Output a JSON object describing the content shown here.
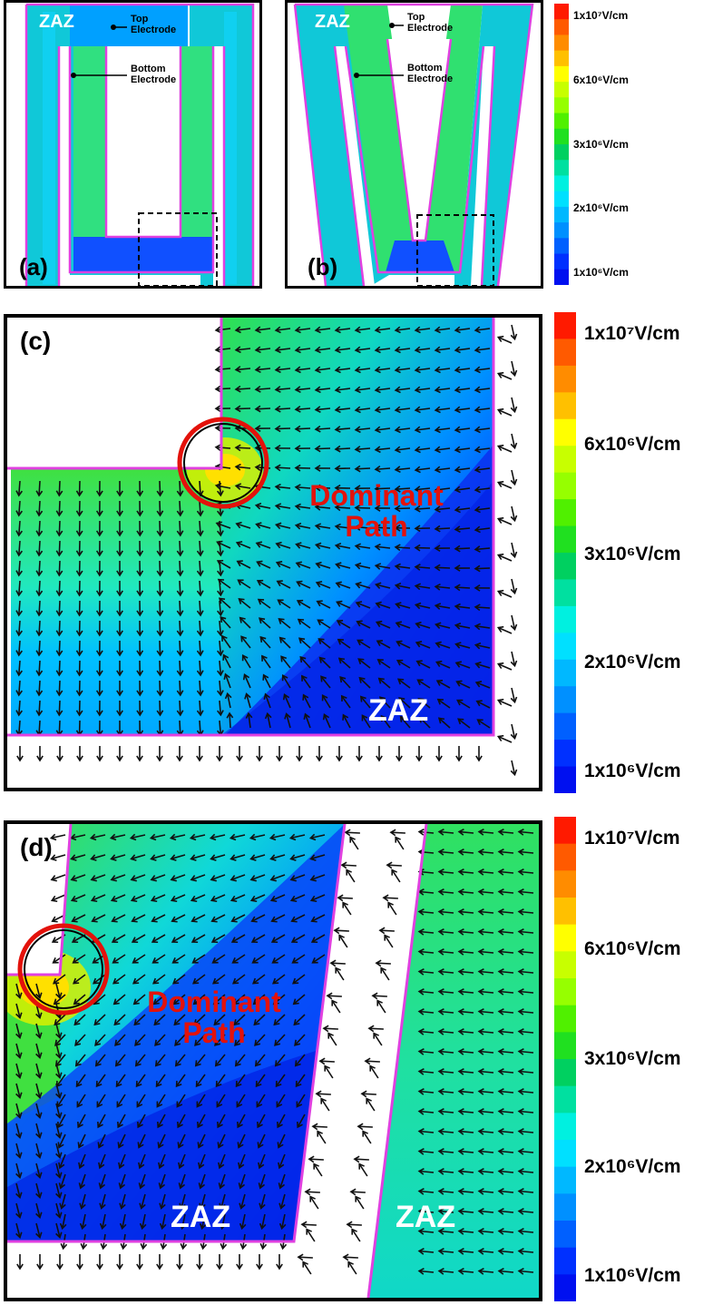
{
  "colorbar": {
    "colors": [
      "#ff1a00",
      "#ff5a00",
      "#ff8c00",
      "#ffc000",
      "#ffff00",
      "#c8ff00",
      "#96ff00",
      "#50f000",
      "#20e020",
      "#00d060",
      "#00e0a0",
      "#00f0e0",
      "#00e0ff",
      "#00b8ff",
      "#0090ff",
      "#0060ff",
      "#0030ff",
      "#0010f0"
    ],
    "small_labels": [
      "1x10⁷V/cm",
      "6x10⁶V/cm",
      "3x10⁶V/cm",
      "2x10⁶V/cm",
      "1x10⁶V/cm"
    ],
    "large_labels": [
      "1x10⁷V/cm",
      "6x10⁶V/cm",
      "3x10⁶V/cm",
      "2x10⁶V/cm",
      "1x10⁶V/cm"
    ]
  },
  "panel_a": {
    "label": "(a)",
    "zaz": "ZAZ",
    "top_electrode": "Top\nElectrode",
    "bottom_electrode": "Bottom\nElectrode"
  },
  "panel_b": {
    "label": "(b)",
    "zaz": "ZAZ",
    "top_electrode": "Top\nElectrode",
    "bottom_electrode": "Bottom\nElectrode"
  },
  "panel_c": {
    "label": "(c)",
    "zaz": "ZAZ",
    "dominant_path": "Dominant\nPath"
  },
  "panel_d": {
    "label": "(d)",
    "zaz_left": "ZAZ",
    "zaz_right": "ZAZ",
    "dominant_path": "Dominant\nPath"
  },
  "colors": {
    "electrode": "#e040e0",
    "circle": "#e3120b",
    "arrow": "#111111"
  }
}
